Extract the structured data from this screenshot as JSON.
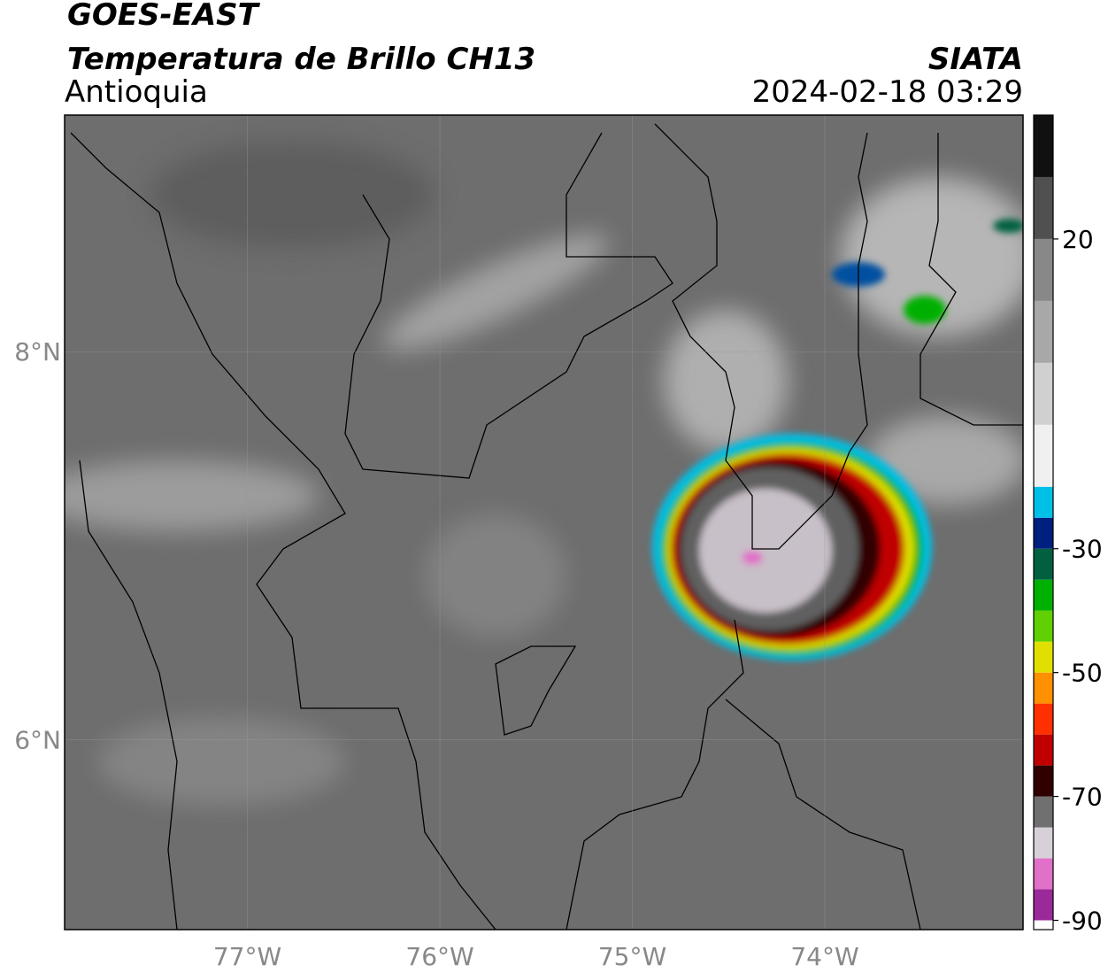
{
  "header": {
    "title": "GOES-EAST",
    "subtitle": "Temperatura de Brillo CH13",
    "region": "Antioquia",
    "source": "SIATA",
    "datetime": "2024-02-18 03:29"
  },
  "map": {
    "xlim": [
      -77.95,
      -72.97
    ],
    "ylim": [
      5.02,
      9.22
    ],
    "xticks": [
      {
        "value": -77,
        "label": "77°W"
      },
      {
        "value": -76,
        "label": "76°W"
      },
      {
        "value": -75,
        "label": "75°W"
      },
      {
        "value": -74,
        "label": "74°W"
      }
    ],
    "yticks": [
      {
        "value": 6,
        "label": "6°N"
      },
      {
        "value": 8,
        "label": "8°N"
      }
    ],
    "grid": true
  },
  "colorbar": {
    "lim": [
      -91.5,
      40
    ],
    "ticks": [
      20,
      -30,
      -50,
      -70,
      -90
    ],
    "bounds": [
      -91.5,
      -90,
      -85,
      -80,
      -75,
      -70,
      -65,
      -60,
      -55,
      -50,
      -45,
      -40,
      -35,
      -30,
      -25,
      -20,
      -10,
      0,
      10,
      20,
      30,
      40
    ],
    "colors": [
      "#ffffff",
      "#9a2a9a",
      "#e070c8",
      "#d8d0d8",
      "#707070",
      "#300000",
      "#c00000",
      "#ff3000",
      "#ff9000",
      "#e0e000",
      "#60d000",
      "#00b000",
      "#006040",
      "#002080",
      "#00c0e8",
      "#f0f0f0",
      "#d0d0d0",
      "#a8a8a8",
      "#888888",
      "#505050",
      "#101010"
    ]
  }
}
